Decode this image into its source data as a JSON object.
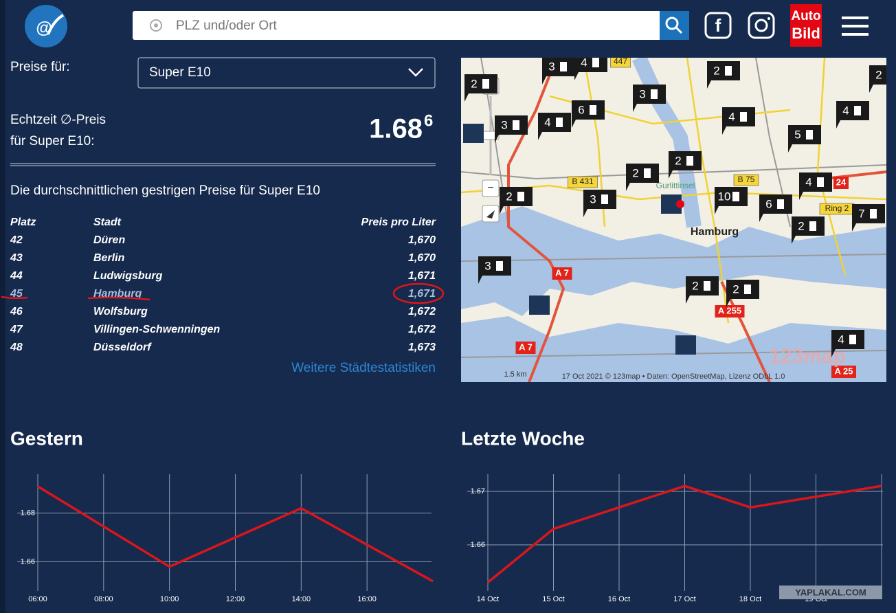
{
  "header": {
    "search_placeholder": "PLZ und/oder Ort",
    "brand_top": "Auto",
    "brand_bottom": "Bild"
  },
  "prices": {
    "label": "Preise für:",
    "fuel_select": "Super E10",
    "realtime_line1": "Echtzeit ∅-Preis",
    "realtime_line2": "für Super E10:",
    "price_main": "1.68",
    "price_sup": "6"
  },
  "table": {
    "title": "Die durchschnittlichen gestrigen Preise für Super E10",
    "headers": [
      "Platz",
      "Stadt",
      "Preis pro Liter"
    ],
    "rows": [
      [
        "42",
        "Düren",
        "1,670"
      ],
      [
        "43",
        "Berlin",
        "1,670"
      ],
      [
        "44",
        "Ludwigsburg",
        "1,671"
      ],
      [
        "45",
        "Hamburg",
        "1,671"
      ],
      [
        "46",
        "Wolfsburg",
        "1,672"
      ],
      [
        "47",
        "Villingen-Schwenningen",
        "1,672"
      ],
      [
        "48",
        "Düsseldorf",
        "1,673"
      ]
    ],
    "link": "Weitere Städtestatistiken"
  },
  "map": {
    "markers": [
      "3",
      "4",
      "2",
      "2",
      "2",
      "3",
      "6",
      "3",
      "4",
      "4",
      "4",
      "5",
      "2",
      "2",
      "2",
      "3",
      "4",
      "10",
      "6",
      "2",
      "7",
      "3",
      "2",
      "2",
      "4"
    ],
    "labels": [
      "447",
      "B 431",
      "Gurlittinsel",
      "B 75",
      "24",
      "Ring 2",
      "Hamburg",
      "A 7",
      "A 255",
      "A 7",
      "A 25",
      "123map",
      "1.5 km",
      "17 Oct 2021 © 123map • Daten: OpenStreetMap, Lizenz ODbL 1.0"
    ]
  },
  "chart_data": [
    {
      "type": "line",
      "title": "Gestern",
      "x": [
        6,
        10,
        14,
        18
      ],
      "values": [
        1.691,
        1.658,
        1.682,
        1.652
      ],
      "color": "#d9161c",
      "xlim": [
        6,
        18
      ],
      "ylim": [
        1.648,
        1.696
      ],
      "xticks": [
        {
          "value": 6,
          "label": "06:00"
        },
        {
          "value": 8,
          "label": "08:00"
        },
        {
          "value": 10,
          "label": "10:00"
        },
        {
          "value": 12,
          "label": "12:00"
        },
        {
          "value": 14,
          "label": "14:00"
        },
        {
          "value": 16,
          "label": "16:00"
        }
      ],
      "yticks": [
        1.66,
        1.68
      ],
      "grid": true
    },
    {
      "type": "line",
      "title": "Letzte Woche",
      "categories": [
        "14 Oct",
        "15 Oct",
        "16 Oct",
        "17 Oct",
        "18 Oct",
        "19 Oct",
        null
      ],
      "values": [
        1.653,
        1.663,
        1.667,
        1.671,
        1.667,
        1.669,
        1.671
      ],
      "color": "#d9161c",
      "ylim": [
        1.6514,
        1.6732
      ],
      "yticks": [
        1.66,
        1.67
      ],
      "grid": true
    }
  ],
  "watermark": "YAPLAKAL.COM"
}
